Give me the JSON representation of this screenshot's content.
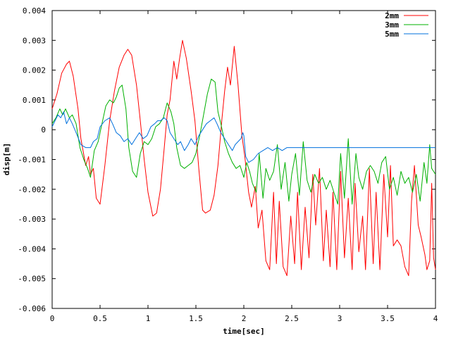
{
  "chart_data": {
    "type": "line",
    "title": "",
    "xlabel": "time[sec]",
    "ylabel": "disp[m]",
    "xlim": [
      0,
      4
    ],
    "ylim": [
      -0.006,
      0.004
    ],
    "xticks": [
      0,
      0.5,
      1,
      1.5,
      2,
      2.5,
      3,
      3.5,
      4
    ],
    "xtick_labels": [
      "0",
      "0.5",
      "1",
      "1.5",
      "2",
      "2.5",
      "3",
      "3.5",
      "4"
    ],
    "yticks": [
      -0.006,
      -0.005,
      -0.004,
      -0.003,
      -0.002,
      -0.001,
      0,
      0.001,
      0.002,
      0.003,
      0.004
    ],
    "ytick_labels": [
      "-0.006",
      "-0.005",
      "-0.004",
      "-0.003",
      "-0.002",
      "-0.001",
      "0",
      "0.001",
      "0.002",
      "0.003",
      "0.004"
    ],
    "grid": false,
    "legend_position": "top-right",
    "series": [
      {
        "name": "2mm",
        "color": "#ff0000",
        "points": [
          [
            0,
            0.0007
          ],
          [
            0.05,
            0.0012
          ],
          [
            0.1,
            0.0019
          ],
          [
            0.15,
            0.0022
          ],
          [
            0.18,
            0.0023
          ],
          [
            0.22,
            0.0018
          ],
          [
            0.27,
            0.0007
          ],
          [
            0.3,
            -0.0003
          ],
          [
            0.35,
            -0.0012
          ],
          [
            0.38,
            -0.0009
          ],
          [
            0.4,
            -0.0015
          ],
          [
            0.43,
            -0.0013
          ],
          [
            0.46,
            -0.0023
          ],
          [
            0.5,
            -0.0025
          ],
          [
            0.55,
            -0.0012
          ],
          [
            0.6,
            0.0003
          ],
          [
            0.65,
            0.0013
          ],
          [
            0.7,
            0.0021
          ],
          [
            0.75,
            0.0025
          ],
          [
            0.79,
            0.0027
          ],
          [
            0.83,
            0.0025
          ],
          [
            0.88,
            0.0015
          ],
          [
            0.92,
            0.0003
          ],
          [
            0.96,
            -0.001
          ],
          [
            1.0,
            -0.0021
          ],
          [
            1.05,
            -0.0029
          ],
          [
            1.09,
            -0.0028
          ],
          [
            1.13,
            -0.002
          ],
          [
            1.17,
            -0.0006
          ],
          [
            1.2,
            0.0005
          ],
          [
            1.23,
            0.001
          ],
          [
            1.27,
            0.0023
          ],
          [
            1.3,
            0.0017
          ],
          [
            1.33,
            0.0024
          ],
          [
            1.36,
            0.003
          ],
          [
            1.4,
            0.0024
          ],
          [
            1.45,
            0.0013
          ],
          [
            1.49,
            0.0003
          ],
          [
            1.53,
            -0.0013
          ],
          [
            1.57,
            -0.0027
          ],
          [
            1.6,
            -0.0028
          ],
          [
            1.65,
            -0.0027
          ],
          [
            1.69,
            -0.0022
          ],
          [
            1.73,
            -0.0012
          ],
          [
            1.77,
            0.0003
          ],
          [
            1.8,
            0.0013
          ],
          [
            1.83,
            0.0021
          ],
          [
            1.86,
            0.0015
          ],
          [
            1.9,
            0.0028
          ],
          [
            1.94,
            0.0015
          ],
          [
            1.98,
            -0.0002
          ],
          [
            2.01,
            -0.0009
          ],
          [
            2.05,
            -0.0021
          ],
          [
            2.08,
            -0.0026
          ],
          [
            2.12,
            -0.0019
          ],
          [
            2.15,
            -0.0033
          ],
          [
            2.19,
            -0.0027
          ],
          [
            2.23,
            -0.0044
          ],
          [
            2.27,
            -0.0047
          ],
          [
            2.31,
            -0.0021
          ],
          [
            2.34,
            -0.0045
          ],
          [
            2.37,
            -0.0024
          ],
          [
            2.41,
            -0.0046
          ],
          [
            2.45,
            -0.0049
          ],
          [
            2.49,
            -0.0029
          ],
          [
            2.53,
            -0.0045
          ],
          [
            2.56,
            -0.0021
          ],
          [
            2.6,
            -0.0047
          ],
          [
            2.64,
            -0.0026
          ],
          [
            2.68,
            -0.0043
          ],
          [
            2.72,
            -0.0015
          ],
          [
            2.75,
            -0.0032
          ],
          [
            2.79,
            -0.0013
          ],
          [
            2.83,
            -0.0044
          ],
          [
            2.86,
            -0.0027
          ],
          [
            2.9,
            -0.0046
          ],
          [
            2.93,
            -0.0021
          ],
          [
            2.97,
            -0.0047
          ],
          [
            3.01,
            -0.0014
          ],
          [
            3.05,
            -0.0043
          ],
          [
            3.09,
            -0.0023
          ],
          [
            3.13,
            -0.0047
          ],
          [
            3.16,
            -0.0018
          ],
          [
            3.2,
            -0.0041
          ],
          [
            3.24,
            -0.0029
          ],
          [
            3.27,
            -0.0047
          ],
          [
            3.31,
            -0.0013
          ],
          [
            3.35,
            -0.0045
          ],
          [
            3.38,
            -0.0021
          ],
          [
            3.42,
            -0.0047
          ],
          [
            3.46,
            -0.0015
          ],
          [
            3.5,
            -0.0036
          ],
          [
            3.53,
            -0.0012
          ],
          [
            3.56,
            -0.0039
          ],
          [
            3.6,
            -0.0037
          ],
          [
            3.64,
            -0.0039
          ],
          [
            3.68,
            -0.0046
          ],
          [
            3.72,
            -0.0049
          ],
          [
            3.75,
            -0.0024
          ],
          [
            3.78,
            -0.0012
          ],
          [
            3.82,
            -0.0032
          ],
          [
            3.85,
            -0.0036
          ],
          [
            3.89,
            -0.0042
          ],
          [
            3.91,
            -0.0047
          ],
          [
            3.94,
            -0.0044
          ],
          [
            3.96,
            -0.0018
          ],
          [
            3.98,
            -0.0043
          ],
          [
            4.0,
            -0.0047
          ]
        ]
      },
      {
        "name": "3mm",
        "color": "#00b000",
        "points": [
          [
            0,
            0.0002
          ],
          [
            0.04,
            0.0004
          ],
          [
            0.08,
            0.0007
          ],
          [
            0.11,
            0.0005
          ],
          [
            0.14,
            0.0007
          ],
          [
            0.18,
            0.0004
          ],
          [
            0.21,
            0.0005
          ],
          [
            0.25,
            0.0002
          ],
          [
            0.29,
            -0.0006
          ],
          [
            0.33,
            -0.001
          ],
          [
            0.37,
            -0.0013
          ],
          [
            0.4,
            -0.0016
          ],
          [
            0.44,
            -0.0007
          ],
          [
            0.48,
            -0.0004
          ],
          [
            0.52,
            0.0002
          ],
          [
            0.56,
            0.0008
          ],
          [
            0.6,
            0.001
          ],
          [
            0.64,
            0.0009
          ],
          [
            0.67,
            0.0011
          ],
          [
            0.7,
            0.0014
          ],
          [
            0.73,
            0.0015
          ],
          [
            0.77,
            0.0007
          ],
          [
            0.8,
            -0.0006
          ],
          [
            0.84,
            -0.0014
          ],
          [
            0.88,
            -0.0016
          ],
          [
            0.92,
            -0.0008
          ],
          [
            0.96,
            -0.0004
          ],
          [
            1.0,
            -0.0005
          ],
          [
            1.04,
            -0.0003
          ],
          [
            1.08,
            0.0001
          ],
          [
            1.12,
            0.0002
          ],
          [
            1.16,
            0.0004
          ],
          [
            1.2,
            0.0009
          ],
          [
            1.24,
            0.0006
          ],
          [
            1.27,
            0.0002
          ],
          [
            1.3,
            -0.0006
          ],
          [
            1.34,
            -0.0012
          ],
          [
            1.38,
            -0.0013
          ],
          [
            1.42,
            -0.0012
          ],
          [
            1.46,
            -0.0011
          ],
          [
            1.5,
            -0.0008
          ],
          [
            1.54,
            -0.0002
          ],
          [
            1.58,
            0.0005
          ],
          [
            1.62,
            0.0012
          ],
          [
            1.66,
            0.0017
          ],
          [
            1.7,
            0.0016
          ],
          [
            1.73,
            0.0006
          ],
          [
            1.76,
            0.0002
          ],
          [
            1.8,
            -0.0004
          ],
          [
            1.84,
            -0.0008
          ],
          [
            1.88,
            -0.0011
          ],
          [
            1.92,
            -0.0013
          ],
          [
            1.96,
            -0.0012
          ],
          [
            2.0,
            -0.0016
          ],
          [
            2.03,
            -0.0011
          ],
          [
            2.06,
            -0.0014
          ],
          [
            2.09,
            -0.0018
          ],
          [
            2.13,
            -0.0021
          ],
          [
            2.16,
            -0.0008
          ],
          [
            2.2,
            -0.0023
          ],
          [
            2.23,
            -0.0013
          ],
          [
            2.27,
            -0.0017
          ],
          [
            2.31,
            -0.0014
          ],
          [
            2.35,
            -0.0005
          ],
          [
            2.39,
            -0.002
          ],
          [
            2.43,
            -0.0011
          ],
          [
            2.47,
            -0.0024
          ],
          [
            2.5,
            -0.0015
          ],
          [
            2.54,
            -0.0008
          ],
          [
            2.58,
            -0.0022
          ],
          [
            2.62,
            -0.0004
          ],
          [
            2.66,
            -0.0017
          ],
          [
            2.7,
            -0.0021
          ],
          [
            2.74,
            -0.0015
          ],
          [
            2.78,
            -0.0018
          ],
          [
            2.82,
            -0.0016
          ],
          [
            2.86,
            -0.002
          ],
          [
            2.9,
            -0.0017
          ],
          [
            2.94,
            -0.0021
          ],
          [
            2.98,
            -0.0025
          ],
          [
            3.01,
            -0.0008
          ],
          [
            3.05,
            -0.0023
          ],
          [
            3.09,
            -0.0003
          ],
          [
            3.13,
            -0.0025
          ],
          [
            3.17,
            -0.0008
          ],
          [
            3.2,
            -0.0016
          ],
          [
            3.24,
            -0.002
          ],
          [
            3.28,
            -0.0014
          ],
          [
            3.32,
            -0.0012
          ],
          [
            3.36,
            -0.0014
          ],
          [
            3.4,
            -0.0018
          ],
          [
            3.44,
            -0.0011
          ],
          [
            3.48,
            -0.0009
          ],
          [
            3.52,
            -0.002
          ],
          [
            3.56,
            -0.0016
          ],
          [
            3.6,
            -0.0022
          ],
          [
            3.64,
            -0.0014
          ],
          [
            3.68,
            -0.0018
          ],
          [
            3.72,
            -0.0016
          ],
          [
            3.76,
            -0.0021
          ],
          [
            3.8,
            -0.0015
          ],
          [
            3.84,
            -0.0024
          ],
          [
            3.88,
            -0.0011
          ],
          [
            3.91,
            -0.0018
          ],
          [
            3.94,
            -0.0005
          ],
          [
            3.96,
            -0.0013
          ],
          [
            3.98,
            -0.0014
          ],
          [
            4.0,
            -0.0015
          ]
        ]
      },
      {
        "name": "5mm",
        "color": "#0070dd",
        "points": [
          [
            0,
            0.0001
          ],
          [
            0.03,
            0.0003
          ],
          [
            0.06,
            0.0005
          ],
          [
            0.09,
            0.0004
          ],
          [
            0.12,
            0.0006
          ],
          [
            0.15,
            0.0002
          ],
          [
            0.18,
            0.0004
          ],
          [
            0.21,
            0.0002
          ],
          [
            0.25,
            -0.0001
          ],
          [
            0.3,
            -0.0005
          ],
          [
            0.35,
            -0.0006
          ],
          [
            0.4,
            -0.0006
          ],
          [
            0.43,
            -0.0004
          ],
          [
            0.47,
            -0.0003
          ],
          [
            0.5,
            0.0001
          ],
          [
            0.55,
            0.0003
          ],
          [
            0.6,
            0.0004
          ],
          [
            0.63,
            0.0002
          ],
          [
            0.67,
            -0.0001
          ],
          [
            0.71,
            -0.0002
          ],
          [
            0.75,
            -0.0004
          ],
          [
            0.79,
            -0.0003
          ],
          [
            0.83,
            -0.0005
          ],
          [
            0.87,
            -0.0003
          ],
          [
            0.91,
            -0.0001
          ],
          [
            0.95,
            -0.0003
          ],
          [
            0.99,
            -0.0002
          ],
          [
            1.03,
            0.0001
          ],
          [
            1.07,
            0.0002
          ],
          [
            1.1,
            0.0003
          ],
          [
            1.13,
            0.0003
          ],
          [
            1.17,
            0.0004
          ],
          [
            1.2,
            0.0003
          ],
          [
            1.23,
            -0.0001
          ],
          [
            1.27,
            -0.0003
          ],
          [
            1.31,
            -0.0005
          ],
          [
            1.34,
            -0.0004
          ],
          [
            1.38,
            -0.0007
          ],
          [
            1.42,
            -0.0005
          ],
          [
            1.45,
            -0.0003
          ],
          [
            1.49,
            -0.0005
          ],
          [
            1.53,
            -0.0002
          ],
          [
            1.57,
            0
          ],
          [
            1.61,
            0.0002
          ],
          [
            1.65,
            0.0003
          ],
          [
            1.69,
            0.0004
          ],
          [
            1.72,
            0.0002
          ],
          [
            1.76,
            -0.0001
          ],
          [
            1.8,
            -0.0003
          ],
          [
            1.84,
            -0.0005
          ],
          [
            1.88,
            -0.0007
          ],
          [
            1.91,
            -0.0005
          ],
          [
            1.94,
            -0.0004
          ],
          [
            1.97,
            -0.0003
          ],
          [
            1.99,
            -0.0001
          ],
          [
            2.0,
            -0.0002
          ],
          [
            2.02,
            -0.0009
          ],
          [
            2.05,
            -0.0011
          ],
          [
            2.1,
            -0.001
          ],
          [
            2.15,
            -0.0008
          ],
          [
            2.2,
            -0.0007
          ],
          [
            2.25,
            -0.0006
          ],
          [
            2.3,
            -0.0007
          ],
          [
            2.35,
            -0.0006
          ],
          [
            2.4,
            -0.0007
          ],
          [
            2.45,
            -0.0006
          ],
          [
            2.5,
            -0.0006
          ],
          [
            2.55,
            -0.0006
          ],
          [
            2.6,
            -0.0006
          ],
          [
            2.7,
            -0.0006
          ],
          [
            2.8,
            -0.0006
          ],
          [
            3.0,
            -0.0006
          ],
          [
            3.2,
            -0.0006
          ],
          [
            3.5,
            -0.0006
          ],
          [
            3.8,
            -0.0006
          ],
          [
            4.0,
            -0.0006
          ]
        ]
      }
    ]
  }
}
